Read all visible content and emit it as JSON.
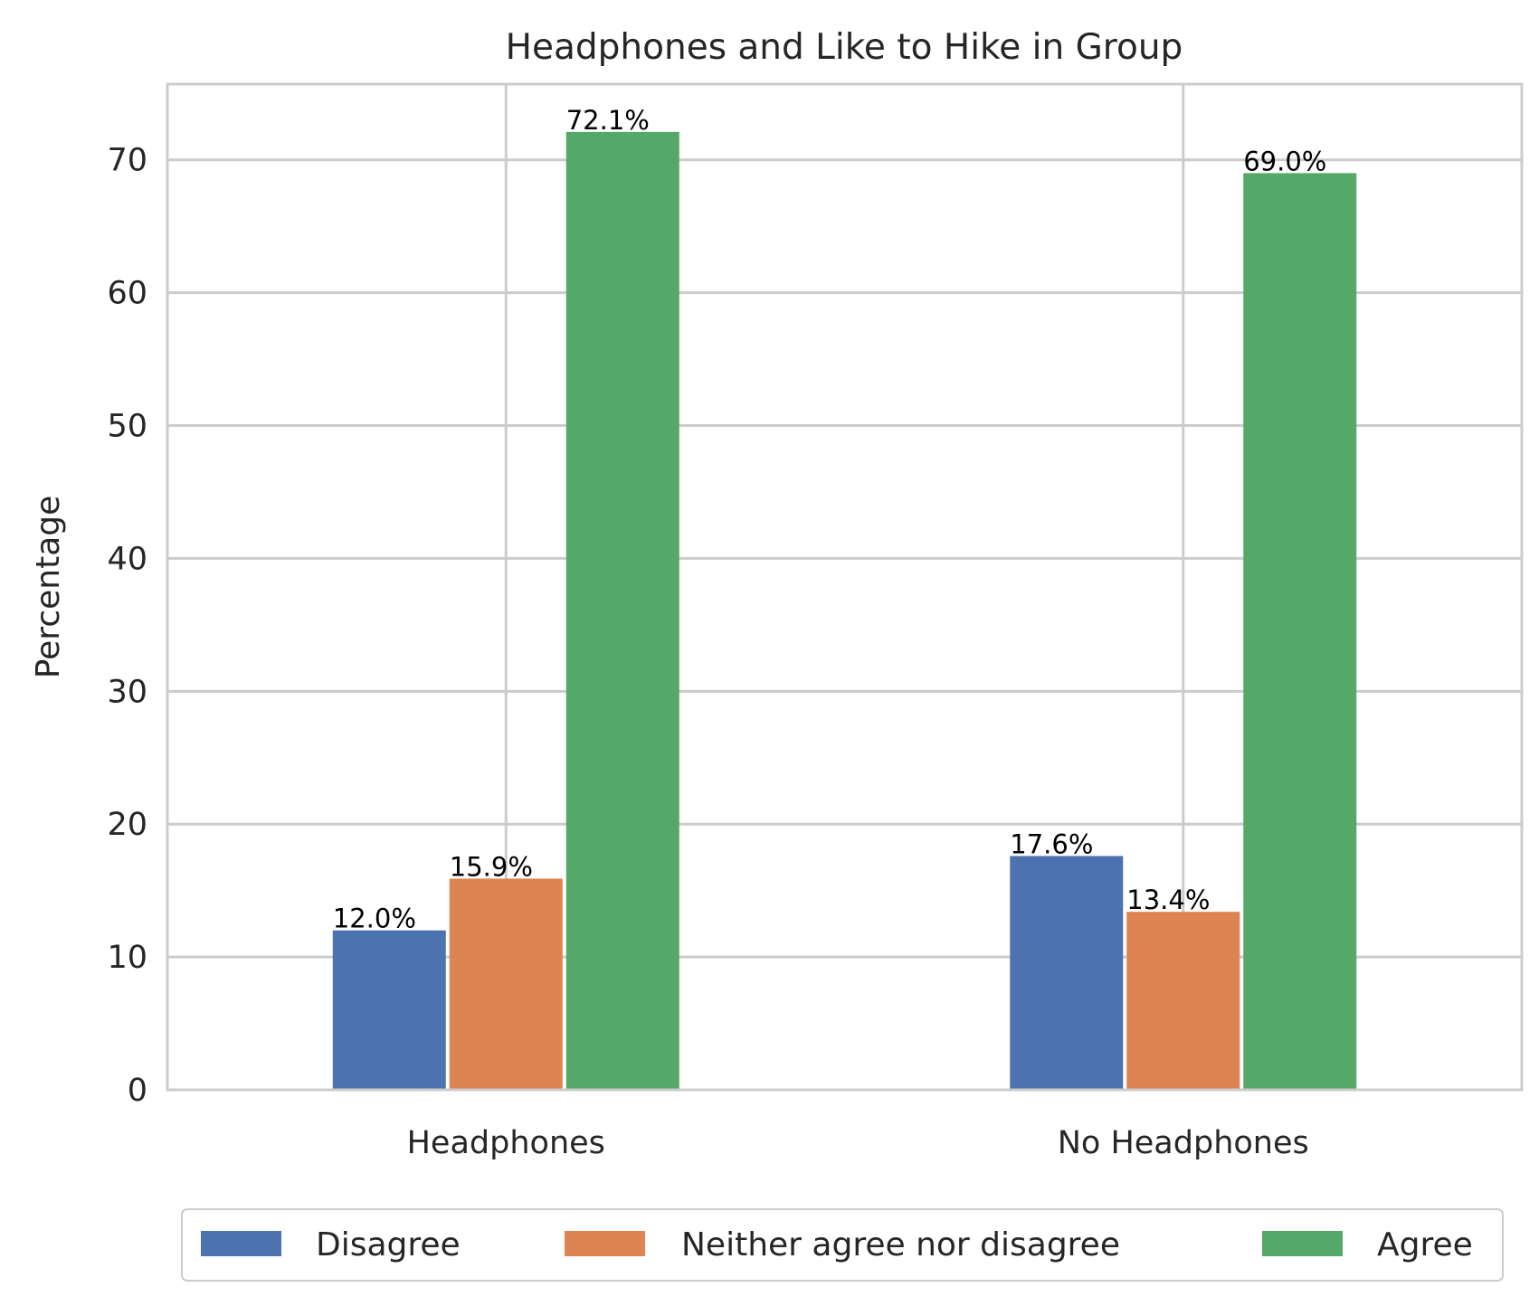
{
  "chart_data": {
    "type": "bar",
    "title": "Headphones and Like to Hike in Group",
    "xlabel": "",
    "ylabel": "Percentage",
    "categories": [
      "Headphones",
      "No Headphones"
    ],
    "series": [
      {
        "name": "Disagree",
        "values": [
          12.0,
          17.6
        ],
        "labels": [
          "12.0%",
          "17.6%"
        ],
        "color": "#4c72b0"
      },
      {
        "name": "Neither agree nor disagree",
        "values": [
          15.9,
          13.4
        ],
        "labels": [
          "15.9%",
          "13.4%"
        ],
        "color": "#dd8452"
      },
      {
        "name": "Agree",
        "values": [
          72.1,
          69.0
        ],
        "labels": [
          "72.1%",
          "69.0%"
        ],
        "color": "#55a868"
      }
    ],
    "ylim": [
      0,
      75.7
    ],
    "yticks": [
      "0",
      "10",
      "20",
      "30",
      "40",
      "50",
      "60",
      "70"
    ],
    "grid": true,
    "legend_position": "bottom-center"
  }
}
